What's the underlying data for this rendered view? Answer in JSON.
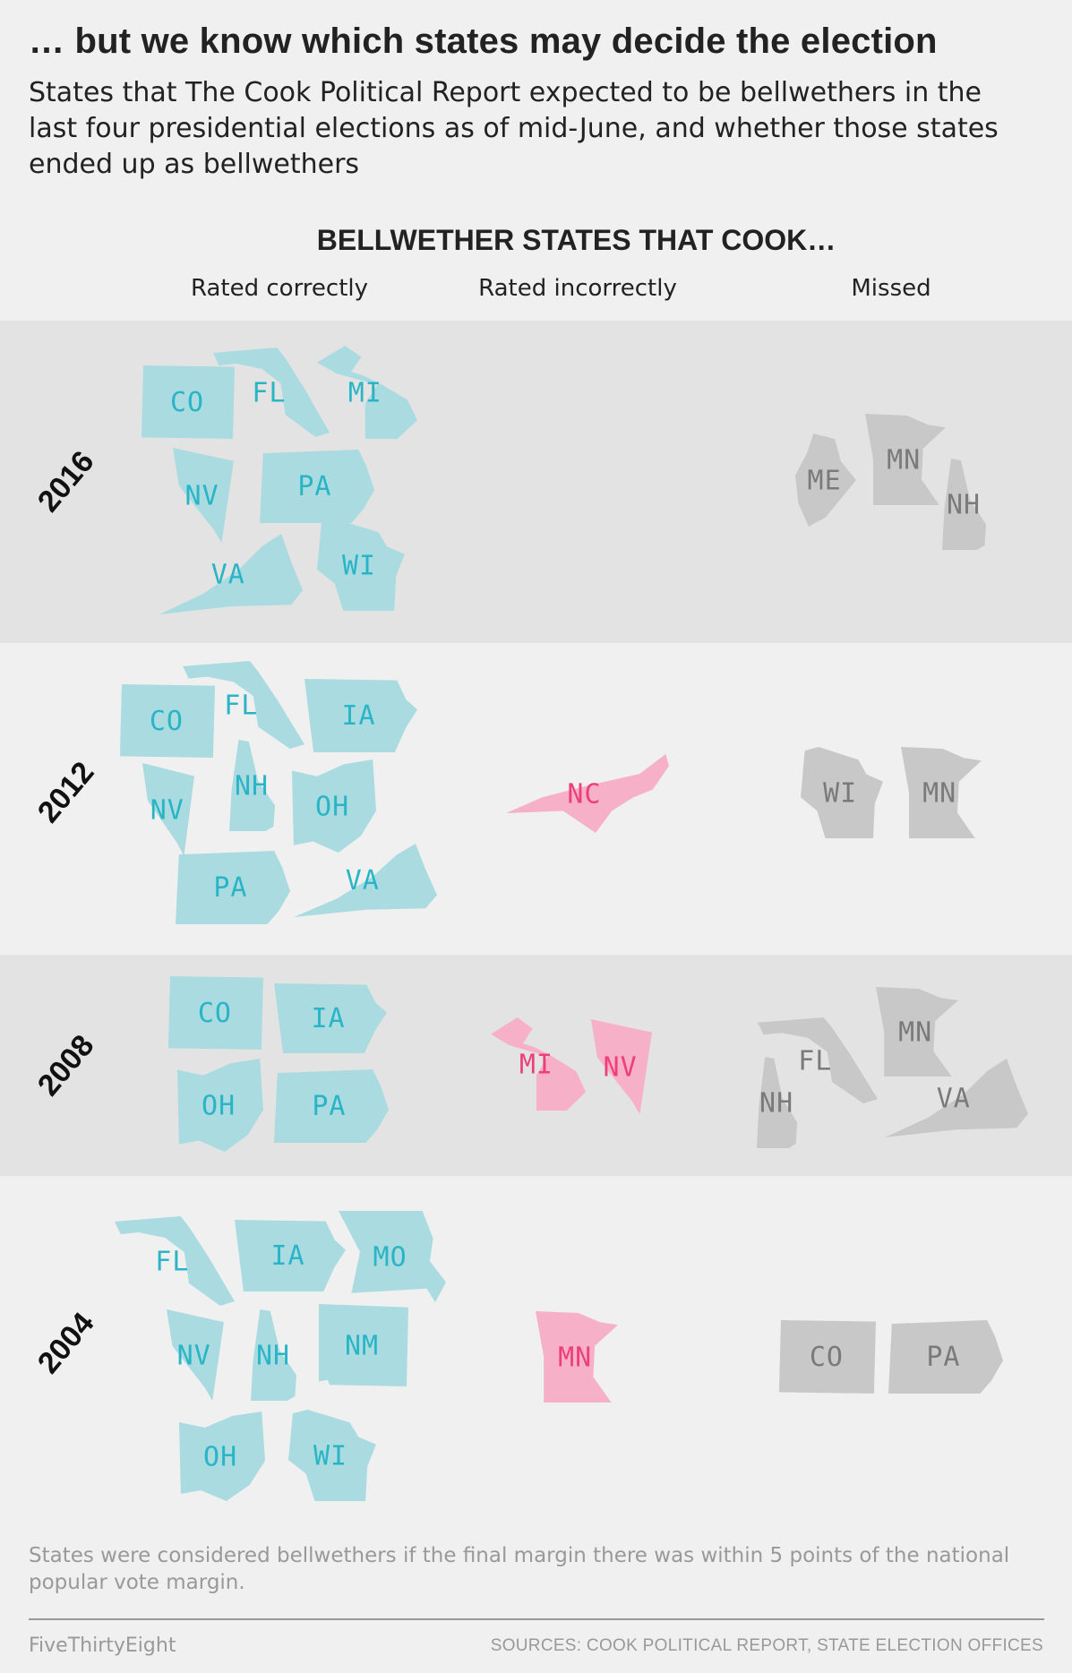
{
  "title": "… but we know which states may decide the election",
  "subtitle": "States that The Cook Political Report expected to be bellwethers in the last four presidential elections as of mid-June, and whether those states ended up as bellwethers",
  "header": "BELLWETHER STATES THAT COOK…",
  "columns": {
    "correct": "Rated correctly",
    "incorrect": "Rated incorrectly",
    "missed": "Missed"
  },
  "colors": {
    "correct_fill": "#a9dbe1",
    "correct_text": "#2ab5c6",
    "incorrect_fill": "#f6b1c8",
    "incorrect_text": "#ee3f7a",
    "missed_fill": "#c8c8c8",
    "missed_text": "#7a7a7a"
  },
  "years": [
    {
      "year": "2016",
      "correct": [
        "CO",
        "FL",
        "MI",
        "NV",
        "PA",
        "VA",
        "WI"
      ],
      "incorrect": [],
      "missed": [
        "ME",
        "MN",
        "NH"
      ]
    },
    {
      "year": "2012",
      "correct": [
        "CO",
        "FL",
        "IA",
        "NV",
        "NH",
        "OH",
        "PA",
        "VA"
      ],
      "incorrect": [
        "NC"
      ],
      "missed": [
        "WI",
        "MN"
      ]
    },
    {
      "year": "2008",
      "correct": [
        "CO",
        "IA",
        "OH",
        "PA"
      ],
      "incorrect": [
        "MI",
        "NV"
      ],
      "missed": [
        "MN",
        "FL",
        "NH",
        "VA"
      ]
    },
    {
      "year": "2004",
      "correct": [
        "FL",
        "IA",
        "MO",
        "NV",
        "NH",
        "NM",
        "OH",
        "WI"
      ],
      "incorrect": [
        "MN"
      ],
      "missed": [
        "CO",
        "PA"
      ]
    }
  ],
  "note": "States were considered bellwethers if the final margin there was within 5 points of the national popular vote margin.",
  "credit": "FiveThirtyEight",
  "sources": "SOURCES: COOK POLITICAL REPORT, STATE ELECTION OFFICES"
}
